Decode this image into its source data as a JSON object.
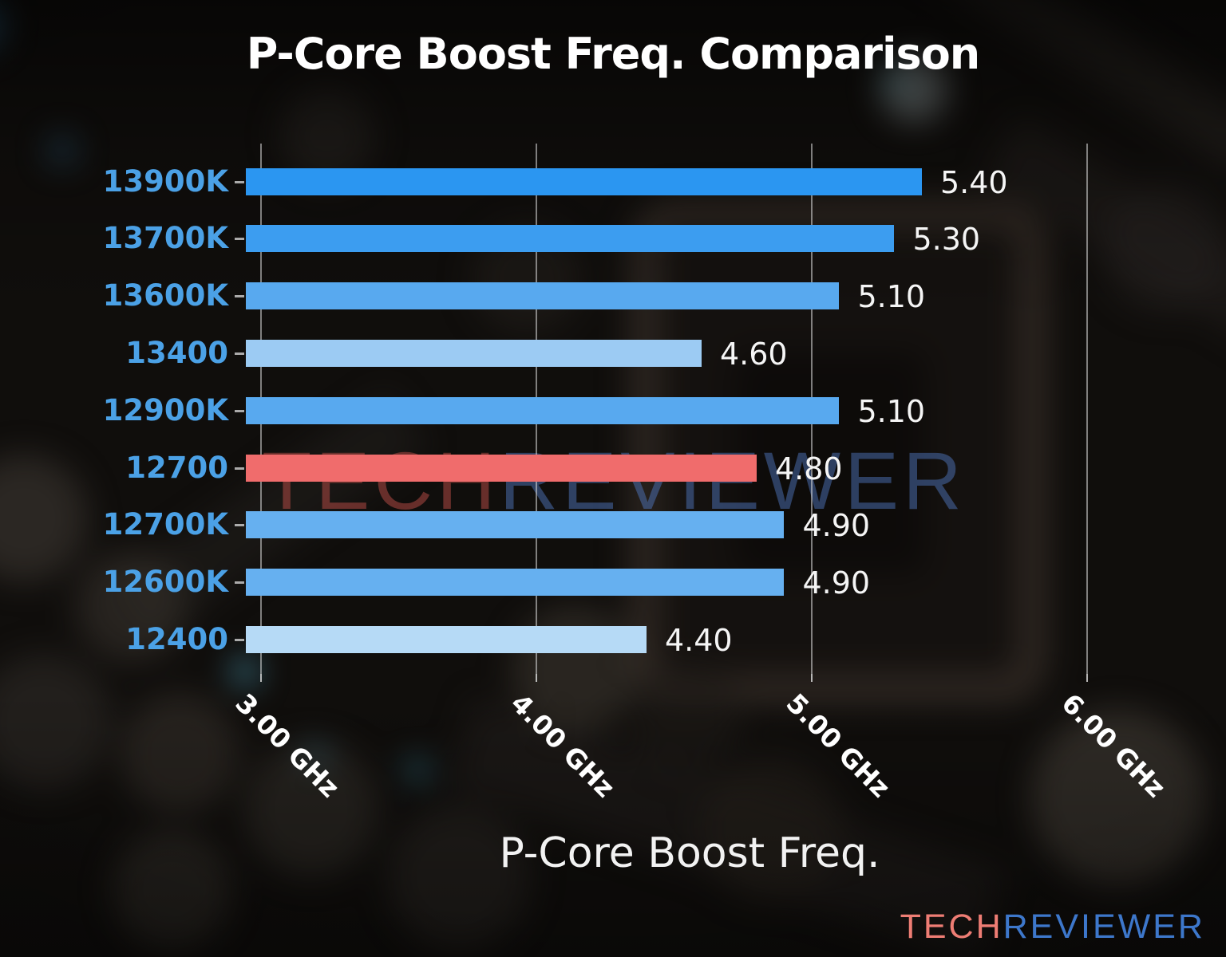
{
  "title": "P-Core Boost Freq. Comparison",
  "watermark": {
    "tech": "TECH",
    "reviewer": "REVIEWER",
    "tech_color": "rgba(190,78,72,0.5)",
    "reviewer_color": "rgba(78,116,186,0.5)"
  },
  "logo": {
    "tech": "TECH",
    "reviewer": "REVIEWER",
    "tech_color": "#ee7d74",
    "reviewer_color": "#3d77cb"
  },
  "chart_data": {
    "type": "bar",
    "orientation": "horizontal",
    "title": "P-Core Boost Freq. Comparison",
    "xlabel": "P-Core Boost Freq.",
    "ylabel": "",
    "categories": [
      "13900K",
      "13700K",
      "13600K",
      "13400",
      "12900K",
      "12700",
      "12700K",
      "12600K",
      "12400"
    ],
    "values": [
      5.4,
      5.3,
      5.1,
      4.6,
      5.1,
      4.8,
      4.9,
      4.9,
      4.4
    ],
    "value_labels": [
      "5.40",
      "5.30",
      "5.10",
      "4.60",
      "5.10",
      "4.80",
      "4.90",
      "4.90",
      "4.40"
    ],
    "bar_colors": [
      "#2b96f1",
      "#3c9df0",
      "#58a9ef",
      "#9ccbf3",
      "#58a9ef",
      "#f06c6c",
      "#66b0f0",
      "#66b0f0",
      "#b6daf6"
    ],
    "highlight_index": 5,
    "highlight_color": "#f06c6c",
    "category_label_color": "#4ba1e6",
    "x_ticks": [
      "3.00 GHz",
      "4.00 GHz",
      "5.00 GHz",
      "6.00 GHz"
    ],
    "x_tick_values": [
      3.0,
      4.0,
      5.0,
      6.0
    ],
    "xlim": [
      2.945,
      6.168
    ],
    "grid": true,
    "legend": "none",
    "value_label_color": "#f5f5f5",
    "background": "dark blurred motherboard photo"
  }
}
